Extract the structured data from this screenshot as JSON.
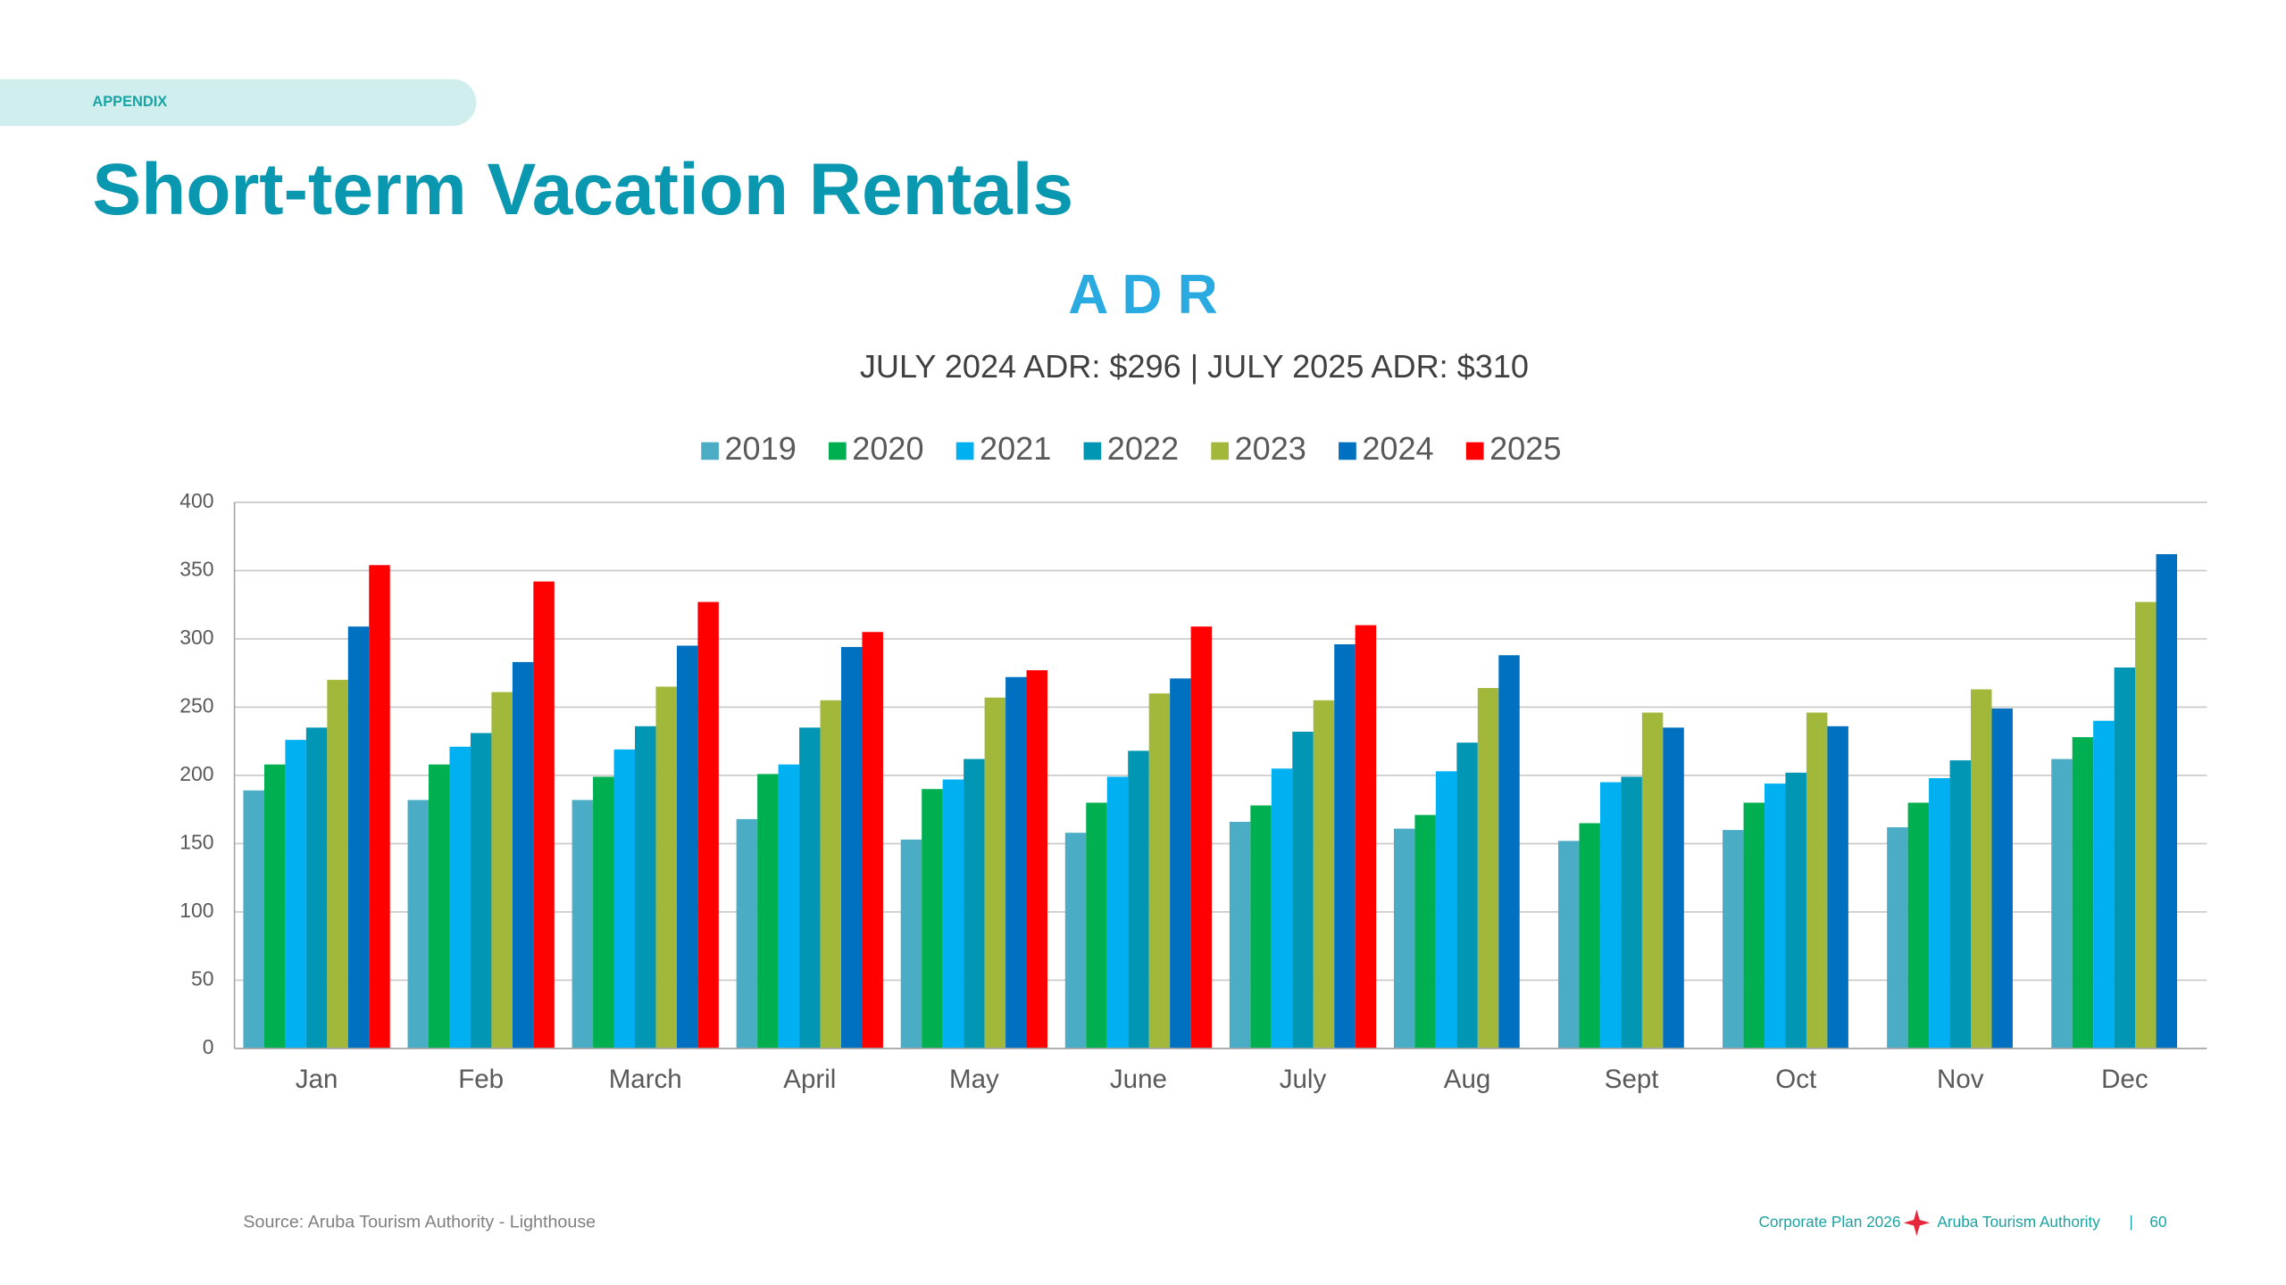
{
  "header": {
    "section": "APPENDIX",
    "title": "Short-term Vacation Rentals"
  },
  "chart_data": {
    "type": "bar",
    "title": "A D R",
    "subtitle": "JULY 2024 ADR: $296 | JULY 2025 ADR: $310",
    "categories": [
      "Jan",
      "Feb",
      "March",
      "April",
      "May",
      "June",
      "July",
      "Aug",
      "Sept",
      "Oct",
      "Nov",
      "Dec"
    ],
    "series": [
      {
        "name": "2019",
        "color": "#4bacc6",
        "values": [
          189,
          182,
          182,
          168,
          153,
          158,
          166,
          161,
          152,
          160,
          162,
          212
        ]
      },
      {
        "name": "2020",
        "color": "#00b050",
        "values": [
          208,
          208,
          199,
          201,
          190,
          180,
          178,
          171,
          165,
          180,
          180,
          228
        ]
      },
      {
        "name": "2021",
        "color": "#00b0f0",
        "values": [
          226,
          221,
          219,
          208,
          197,
          199,
          205,
          203,
          195,
          194,
          198,
          240
        ]
      },
      {
        "name": "2022",
        "color": "#0096b4",
        "values": [
          235,
          231,
          236,
          235,
          212,
          218,
          232,
          224,
          199,
          202,
          211,
          279
        ]
      },
      {
        "name": "2023",
        "color": "#a2b83a",
        "values": [
          270,
          261,
          265,
          255,
          257,
          260,
          255,
          264,
          246,
          246,
          263,
          327
        ]
      },
      {
        "name": "2024",
        "color": "#0070c0",
        "values": [
          309,
          283,
          295,
          294,
          272,
          271,
          296,
          288,
          235,
          236,
          249,
          362
        ]
      },
      {
        "name": "2025",
        "color": "#ff0000",
        "values": [
          354,
          342,
          327,
          305,
          277,
          309,
          310,
          null,
          null,
          null,
          null,
          null
        ]
      }
    ],
    "ylim": [
      0,
      400
    ],
    "yticks": [
      0,
      50,
      100,
      150,
      200,
      250,
      300,
      350,
      400
    ],
    "grid": true,
    "legend": "top"
  },
  "footer": {
    "source": "Source: Aruba Tourism Authority - Lighthouse",
    "plan": "Corporate Plan 2026",
    "org": "Aruba Tourism Authority",
    "separator": "|",
    "page": "60"
  }
}
